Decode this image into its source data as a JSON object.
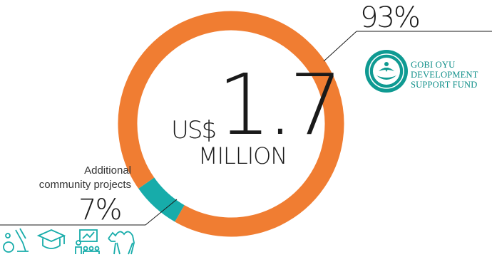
{
  "chart_data": {
    "type": "pie",
    "style": "donut",
    "total": {
      "currency": "US$",
      "amount": "1.7",
      "unit": "MILLION"
    },
    "slices": [
      {
        "label": "GOBI OYU DEVELOPMENT SUPPORT FUND",
        "value": 93,
        "display": "93%",
        "color": "#F07D32"
      },
      {
        "label": "Additional community projects",
        "value": 7,
        "display": "7%",
        "color": "#17ACAA"
      }
    ]
  },
  "segment_label_lines": [
    "Additional",
    "community projects"
  ],
  "org_lines": [
    "GOBI OYU",
    "DEVELOPMENT",
    "SUPPORT FUND"
  ],
  "icons": [
    "science-microscope-icon",
    "graduation-cap-icon",
    "teacher-presentation-icon",
    "camel-icon"
  ],
  "colors": {
    "accent_orange": "#F07D32",
    "accent_teal": "#17ACAA",
    "text": "#1a1a1a",
    "org_text": "#0f8f89"
  }
}
